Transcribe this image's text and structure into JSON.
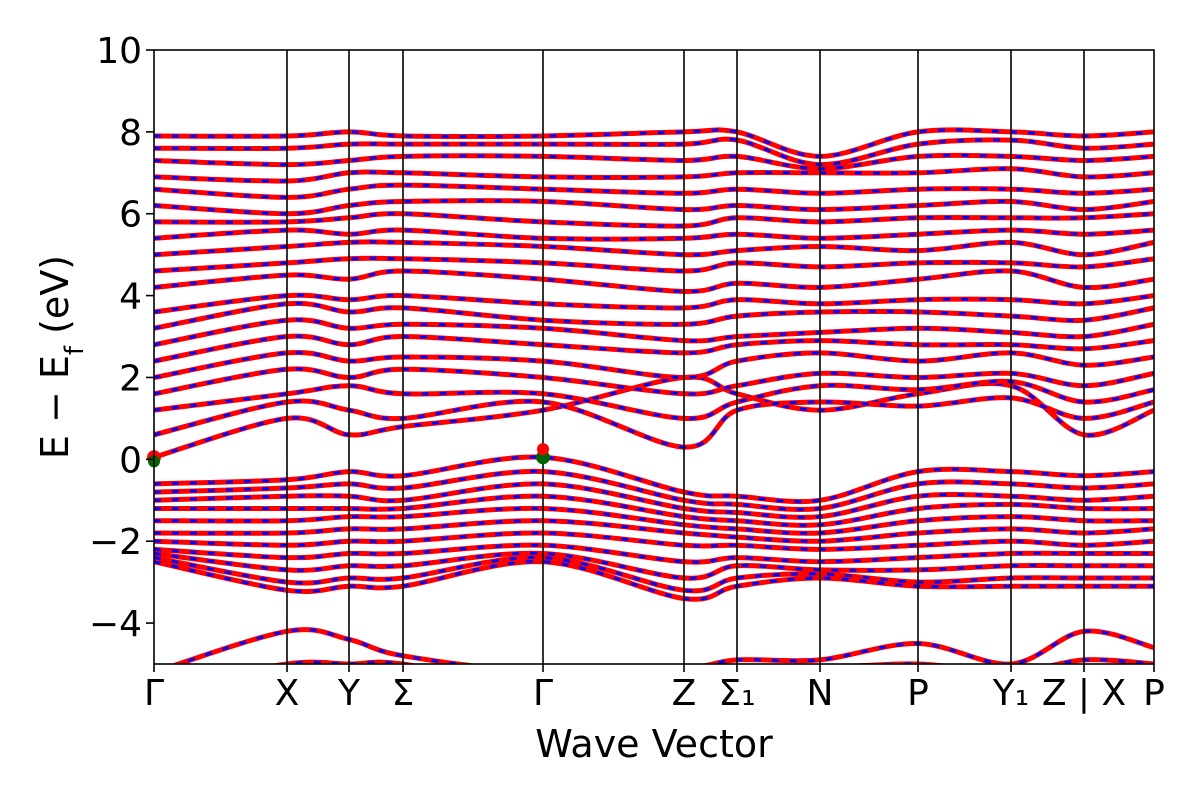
{
  "chart_data": {
    "type": "line",
    "title": "",
    "xlabel": "Wave Vector",
    "ylabel": "E − E_f (eV)",
    "ylabel_parts": {
      "main": "E − E",
      "sub": "f",
      "unit": " (eV)"
    },
    "ylim": [
      -5,
      10
    ],
    "yticks": [
      {
        "value": -4,
        "label": "−4"
      },
      {
        "value": -2,
        "label": "−2"
      },
      {
        "value": 0,
        "label": "0"
      },
      {
        "value": 2,
        "label": "2"
      },
      {
        "value": 4,
        "label": "4"
      },
      {
        "value": 6,
        "label": "6"
      },
      {
        "value": 8,
        "label": "8"
      },
      {
        "value": 10,
        "label": "10"
      }
    ],
    "x_range": [
      0,
      1
    ],
    "kpoints": [
      {
        "label": "Γ",
        "x": 0.0
      },
      {
        "label": "X",
        "x": 0.133
      },
      {
        "label": "Y",
        "x": 0.195
      },
      {
        "label": "Σ",
        "x": 0.249
      },
      {
        "label": "Γ",
        "x": 0.389
      },
      {
        "label": "Z",
        "x": 0.53
      },
      {
        "label": "Σ₁",
        "x": 0.583
      },
      {
        "label": "N",
        "x": 0.666
      },
      {
        "label": "P",
        "x": 0.764
      },
      {
        "label": "Y₁",
        "x": 0.857
      },
      {
        "label": "Z | X",
        "x": 0.93
      },
      {
        "label": "P",
        "x": 1.0
      }
    ],
    "grid": false,
    "legend": "none",
    "series": [
      {
        "style": "solid",
        "color": "#ff0000"
      },
      {
        "style": "dashed",
        "color": "#0000ff"
      }
    ],
    "cbm": {
      "x": 0.0,
      "y": 0.05,
      "color": "#ff0000"
    },
    "vbm": {
      "x": 0.389,
      "y": 0.05,
      "color": "#006400"
    },
    "bands_approx": {
      "conduction": [
        [
          0.05,
          1.0,
          0.6,
          0.8,
          1.2,
          2.0,
          1.6,
          1.2,
          1.6,
          1.8,
          0.6,
          1.2
        ],
        [
          0.6,
          1.4,
          1.2,
          1.0,
          1.4,
          0.3,
          1.2,
          1.4,
          1.3,
          1.5,
          1.0,
          1.4
        ],
        [
          1.2,
          1.6,
          1.8,
          1.6,
          1.6,
          1.0,
          1.4,
          1.8,
          1.7,
          1.9,
          1.4,
          1.7
        ],
        [
          1.6,
          2.2,
          2.0,
          2.2,
          2.0,
          1.6,
          1.8,
          2.1,
          2.0,
          2.1,
          1.8,
          2.1
        ],
        [
          2.0,
          2.6,
          2.4,
          2.5,
          2.4,
          2.0,
          2.4,
          2.6,
          2.4,
          2.6,
          2.3,
          2.5
        ],
        [
          2.4,
          3.0,
          2.8,
          3.0,
          2.8,
          2.6,
          2.8,
          2.9,
          2.8,
          2.8,
          2.7,
          2.9
        ],
        [
          2.8,
          3.4,
          3.2,
          3.3,
          3.2,
          2.9,
          3.0,
          3.1,
          3.2,
          3.1,
          3.0,
          3.3
        ],
        [
          3.2,
          3.8,
          3.6,
          3.7,
          3.4,
          3.3,
          3.5,
          3.6,
          3.6,
          3.5,
          3.4,
          3.7
        ],
        [
          3.6,
          4.0,
          3.9,
          4.0,
          3.8,
          3.7,
          3.9,
          3.8,
          3.9,
          3.9,
          3.8,
          4.0
        ],
        [
          4.2,
          4.5,
          4.4,
          4.6,
          4.4,
          4.1,
          4.3,
          4.2,
          4.4,
          4.6,
          4.2,
          4.4
        ],
        [
          4.6,
          4.8,
          4.9,
          4.9,
          4.8,
          4.6,
          4.8,
          4.7,
          4.8,
          4.8,
          4.7,
          4.9
        ],
        [
          5.0,
          5.2,
          5.3,
          5.3,
          5.2,
          5.0,
          5.1,
          5.2,
          5.1,
          5.3,
          5.0,
          5.3
        ],
        [
          5.4,
          5.6,
          5.5,
          5.6,
          5.4,
          5.4,
          5.5,
          5.4,
          5.5,
          5.6,
          5.5,
          5.6
        ],
        [
          5.8,
          5.8,
          5.9,
          6.0,
          5.8,
          5.7,
          5.9,
          5.8,
          5.9,
          5.9,
          5.9,
          6.0
        ],
        [
          6.2,
          6.0,
          6.2,
          6.3,
          6.3,
          6.1,
          6.2,
          6.1,
          6.2,
          6.3,
          6.1,
          6.3
        ],
        [
          6.6,
          6.4,
          6.6,
          6.7,
          6.6,
          6.5,
          6.6,
          6.5,
          6.6,
          6.6,
          6.5,
          6.6
        ],
        [
          6.9,
          6.8,
          7.0,
          7.0,
          6.9,
          6.9,
          7.0,
          7.0,
          7.0,
          7.1,
          6.9,
          7.0
        ],
        [
          7.3,
          7.2,
          7.3,
          7.4,
          7.4,
          7.3,
          7.4,
          7.1,
          7.4,
          7.4,
          7.3,
          7.4
        ],
        [
          7.6,
          7.6,
          7.7,
          7.7,
          7.7,
          7.7,
          7.8,
          7.2,
          7.7,
          7.8,
          7.6,
          7.7
        ],
        [
          7.9,
          7.9,
          8.0,
          7.9,
          7.9,
          8.0,
          8.0,
          7.4,
          8.0,
          8.0,
          7.9,
          8.0
        ]
      ],
      "valence": [
        [
          -0.6,
          -0.5,
          -0.3,
          -0.4,
          0.05,
          -0.8,
          -0.9,
          -1.0,
          -0.3,
          -0.3,
          -0.4,
          -0.3
        ],
        [
          -0.8,
          -0.7,
          -0.6,
          -0.7,
          -0.3,
          -1.0,
          -1.1,
          -1.2,
          -0.6,
          -0.6,
          -0.7,
          -0.6
        ],
        [
          -1.0,
          -0.9,
          -0.9,
          -1.0,
          -0.6,
          -1.2,
          -1.3,
          -1.4,
          -0.9,
          -0.9,
          -1.0,
          -0.9
        ],
        [
          -1.2,
          -1.2,
          -1.2,
          -1.2,
          -0.9,
          -1.4,
          -1.5,
          -1.6,
          -1.2,
          -1.1,
          -1.2,
          -1.2
        ],
        [
          -1.5,
          -1.5,
          -1.4,
          -1.4,
          -1.2,
          -1.6,
          -1.7,
          -1.8,
          -1.5,
          -1.4,
          -1.5,
          -1.5
        ],
        [
          -1.8,
          -1.8,
          -1.7,
          -1.7,
          -1.5,
          -1.8,
          -1.9,
          -2.0,
          -1.8,
          -1.7,
          -1.8,
          -1.7
        ],
        [
          -2.0,
          -2.1,
          -2.0,
          -2.0,
          -1.8,
          -2.1,
          -2.1,
          -2.2,
          -2.1,
          -2.0,
          -2.1,
          -2.0
        ],
        [
          -2.2,
          -2.4,
          -2.3,
          -2.3,
          -2.1,
          -2.5,
          -2.4,
          -2.5,
          -2.4,
          -2.3,
          -2.3,
          -2.3
        ],
        [
          -2.3,
          -2.7,
          -2.6,
          -2.6,
          -2.3,
          -2.9,
          -2.6,
          -2.7,
          -2.7,
          -2.6,
          -2.6,
          -2.6
        ],
        [
          -2.4,
          -3.0,
          -2.9,
          -2.9,
          -2.4,
          -3.2,
          -2.9,
          -2.8,
          -3.0,
          -2.9,
          -2.9,
          -2.9
        ],
        [
          -2.5,
          -3.2,
          -3.1,
          -3.1,
          -2.5,
          -3.4,
          -3.1,
          -2.9,
          -3.1,
          -3.1,
          -3.1,
          -3.1
        ]
      ],
      "deep": [
        [
          -5.2,
          -4.2,
          -4.4,
          -4.8,
          -5.2,
          -5.1,
          -4.9,
          -4.9,
          -4.5,
          -5.0,
          -4.2,
          -4.6
        ],
        [
          -5.6,
          -5.0,
          -5.0,
          -5.0,
          -5.6,
          -5.4,
          -5.2,
          -5.1,
          -5.0,
          -5.2,
          -4.9,
          -5.0
        ]
      ]
    }
  }
}
